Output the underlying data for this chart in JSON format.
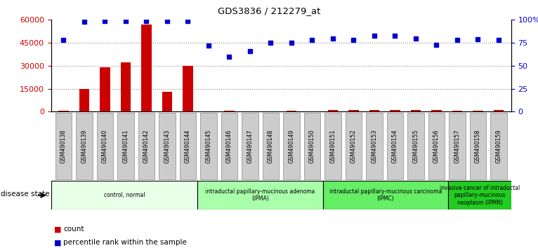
{
  "title": "GDS3836 / 212279_at",
  "samples": [
    "GSM490138",
    "GSM490139",
    "GSM490140",
    "GSM490141",
    "GSM490142",
    "GSM490143",
    "GSM490144",
    "GSM490145",
    "GSM490146",
    "GSM490147",
    "GSM490148",
    "GSM490149",
    "GSM490150",
    "GSM490151",
    "GSM490152",
    "GSM490153",
    "GSM490154",
    "GSM490155",
    "GSM490156",
    "GSM490157",
    "GSM490158",
    "GSM490159"
  ],
  "counts": [
    500,
    15000,
    29000,
    32000,
    57000,
    13000,
    30000,
    300,
    400,
    300,
    300,
    800,
    300,
    900,
    900,
    1200,
    900,
    900,
    900,
    800,
    800,
    1000
  ],
  "percentiles": [
    78,
    98,
    99,
    99,
    99,
    99,
    99,
    72,
    60,
    66,
    75,
    75,
    78,
    80,
    78,
    83,
    83,
    80,
    73,
    78,
    79,
    78
  ],
  "groups": [
    {
      "label": "control, normal",
      "start": 0,
      "end": 7,
      "color": "#e8ffe8"
    },
    {
      "label": "intraductal papillary-mucinous adenoma\n(IPMA)",
      "start": 7,
      "end": 13,
      "color": "#aaffaa"
    },
    {
      "label": "intraductal papillary-mucinous carcinoma\n(IPMC)",
      "start": 13,
      "end": 19,
      "color": "#66ee66"
    },
    {
      "label": "invasive cancer of intraductal\npapillary-mucinous\nneoplasm (IPMN)",
      "start": 19,
      "end": 22,
      "color": "#22cc22"
    }
  ],
  "ylim_left": [
    0,
    60000
  ],
  "ylim_right": [
    0,
    100
  ],
  "yticks_left": [
    0,
    15000,
    30000,
    45000,
    60000
  ],
  "yticks_right": [
    0,
    25,
    50,
    75,
    100
  ],
  "count_color": "#cc0000",
  "percentile_color": "#0000cc",
  "grid_color": "#888888",
  "bg_color": "#ffffff",
  "tick_label_color_left": "#cc0000",
  "tick_label_color_right": "#0000cc",
  "xtick_bg_color": "#cccccc",
  "xtick_border_color": "#888888"
}
